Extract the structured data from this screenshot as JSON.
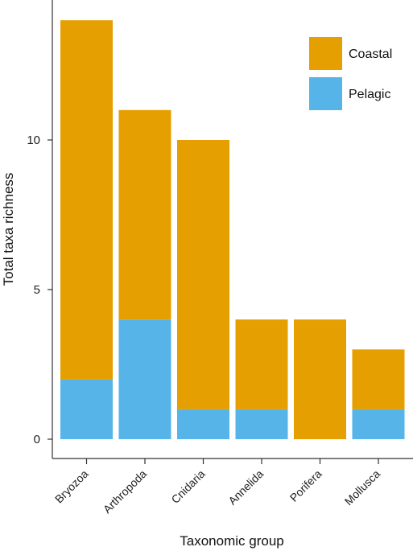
{
  "chart_data": {
    "type": "bar",
    "stacked": true,
    "categories": [
      "Bryozoa",
      "Arthropoda",
      "Cnidaria",
      "Annelida",
      "Porifera",
      "Mollusca"
    ],
    "series": [
      {
        "name": "Pelagic",
        "color": "#56b4e9",
        "values": [
          2,
          4,
          1,
          1,
          0,
          1
        ]
      },
      {
        "name": "Coastal",
        "color": "#e69f00",
        "values": [
          12,
          7,
          9,
          3,
          4,
          2
        ]
      }
    ],
    "totals": [
      14,
      11,
      10,
      4,
      4,
      3
    ],
    "xlabel": "Taxonomic group",
    "ylabel": "Total taxa richness",
    "ylim": [
      0,
      15
    ],
    "yticks": [
      "0",
      "5",
      "10"
    ],
    "legend": {
      "placement": "top-right",
      "entries": [
        "Coastal",
        "Pelagic"
      ]
    },
    "grid": false
  }
}
